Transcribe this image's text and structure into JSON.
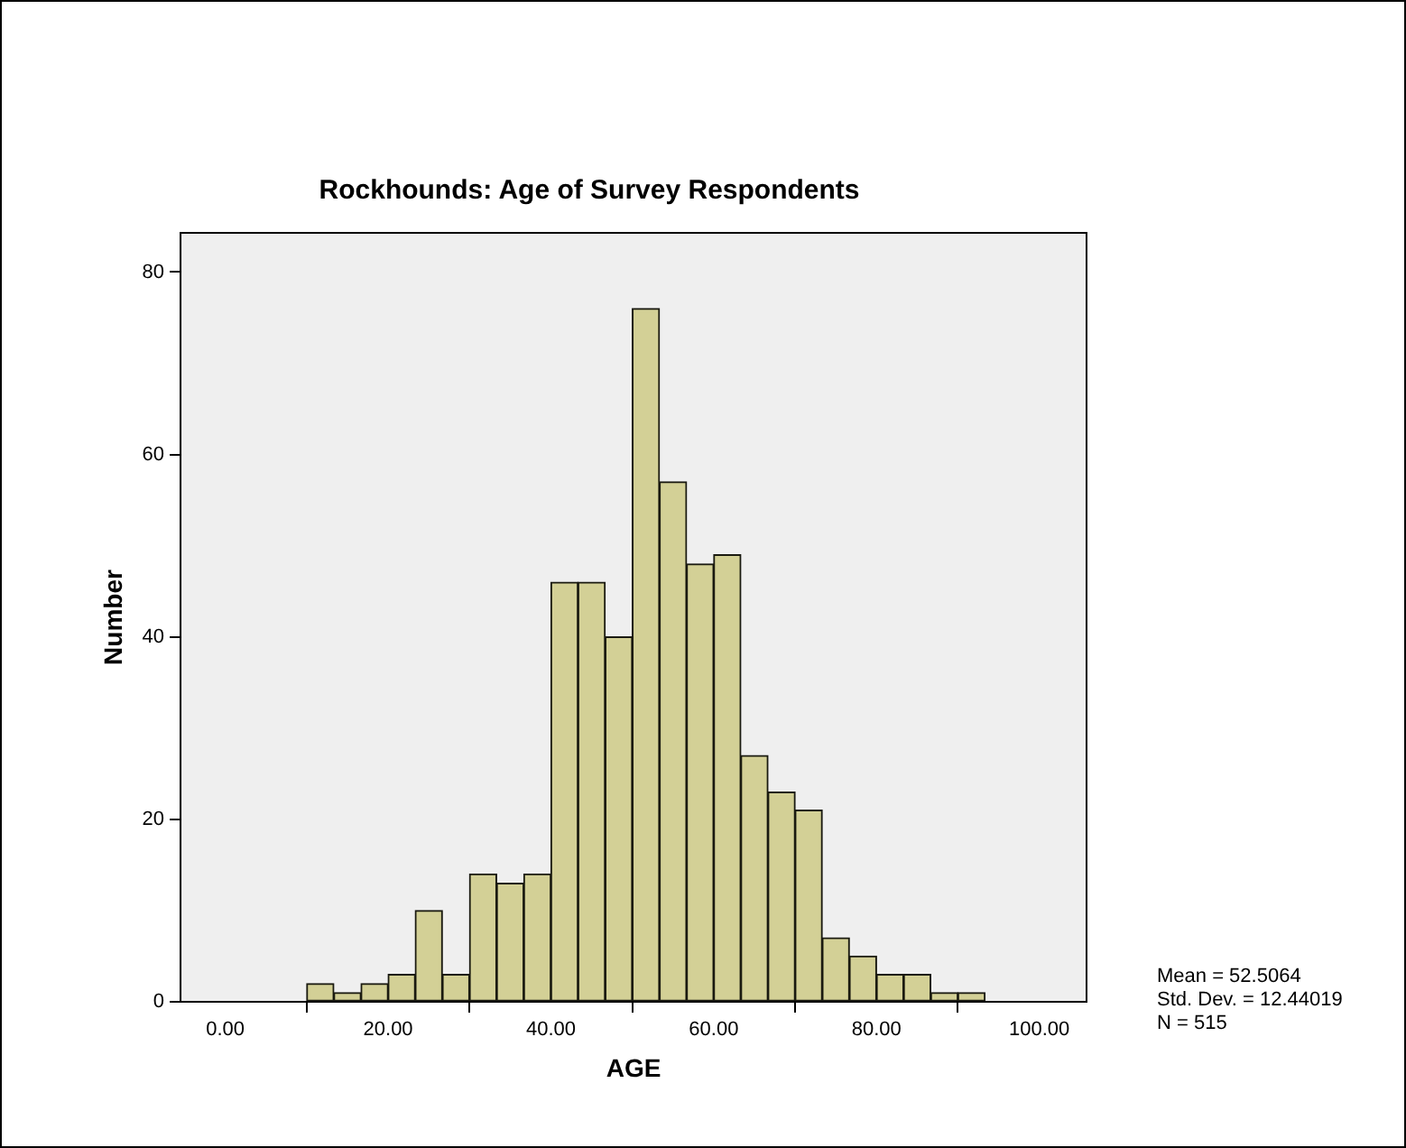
{
  "chart_data": {
    "type": "histogram",
    "title": "Rockhounds: Age of Survey Respondents",
    "xlabel": "AGE",
    "ylabel": "Number",
    "bins": [
      10,
      13.33,
      16.67,
      20,
      23.33,
      26.67,
      30,
      33.33,
      36.67,
      40,
      43.33,
      46.67,
      50,
      53.33,
      56.67,
      60,
      63.33,
      66.67,
      70,
      73.33,
      76.67,
      80,
      83.33,
      86.67,
      90,
      93.33
    ],
    "values": [
      2,
      1,
      2,
      3,
      10,
      3,
      14,
      13,
      14,
      46,
      46,
      40,
      76,
      57,
      48,
      49,
      27,
      23,
      21,
      7,
      5,
      3,
      3,
      1,
      1
    ],
    "color": "#d3d096",
    "xlim": [
      -5.5,
      105.8
    ],
    "ylim": [
      0,
      84.3
    ],
    "xticks": [
      {
        "value": 0,
        "label": "0.00"
      },
      {
        "value": 20,
        "label": "20.00"
      },
      {
        "value": 40,
        "label": "40.00"
      },
      {
        "value": 60,
        "label": "60.00"
      },
      {
        "value": 80,
        "label": "80.00"
      },
      {
        "value": 100,
        "label": "100.00"
      }
    ],
    "yticks": [
      0,
      20,
      40,
      60,
      80
    ],
    "annotations": [
      "Mean = 52.5064",
      "Std. Dev. = 12.44019",
      "N = 515"
    ]
  }
}
